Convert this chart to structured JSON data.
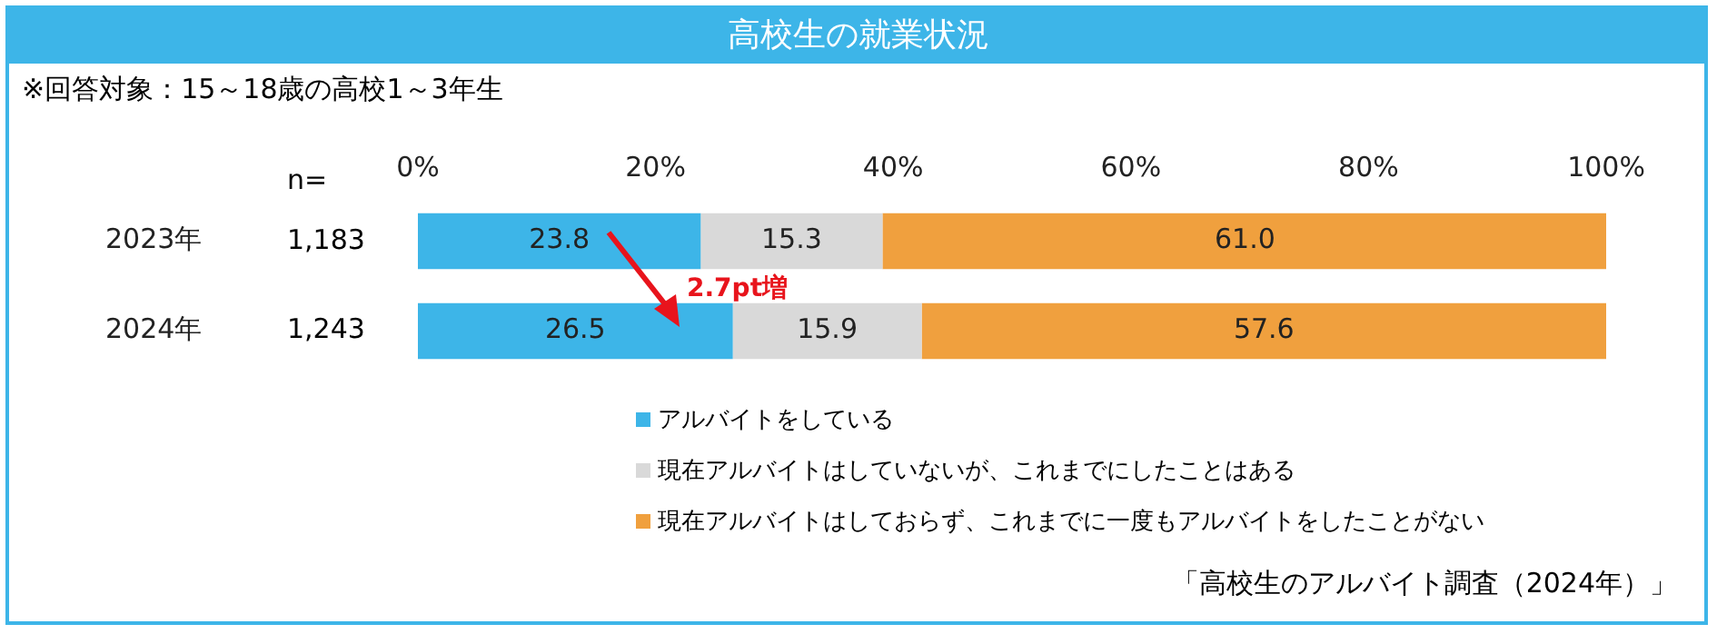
{
  "chart_data": {
    "type": "bar",
    "orientation": "horizontal",
    "stacked": true,
    "title": "高校生の就業状況",
    "subtitle": "※回答対象：15～18歳の高校1～3年生",
    "categories": [
      "2023年",
      "2024年"
    ],
    "series": [
      {
        "name": "アルバイトをしている",
        "color": "#3db5e8",
        "values": [
          23.8,
          26.5
        ],
        "value_labels": [
          "23.8",
          "26.5"
        ]
      },
      {
        "name": "現在アルバイトはしていないが、これまでにしたことはある",
        "color": "#d9d9d9",
        "values": [
          15.3,
          15.9
        ],
        "value_labels": [
          "15.3",
          "15.9"
        ]
      },
      {
        "name": "現在アルバイトはしておらず、これまでに一度もアルバイトをしたことがない",
        "color": "#f0a03e",
        "values": [
          61.0,
          57.6
        ],
        "value_labels": [
          "61.0",
          "57.6"
        ]
      }
    ],
    "xlim": [
      0,
      100
    ],
    "xticks": [
      {
        "value": 0,
        "label": "0%"
      },
      {
        "value": 20,
        "label": "20%"
      },
      {
        "value": 40,
        "label": "40%"
      },
      {
        "value": 60,
        "label": "60%"
      },
      {
        "value": 80,
        "label": "80%"
      },
      {
        "value": 100,
        "label": "100%"
      }
    ],
    "grid": false,
    "legend": "bottom",
    "annotations": [
      "n=",
      "1,183",
      "1,243",
      "2.7pt増",
      "「高校生のアルバイト調査（2024年）」"
    ]
  }
}
